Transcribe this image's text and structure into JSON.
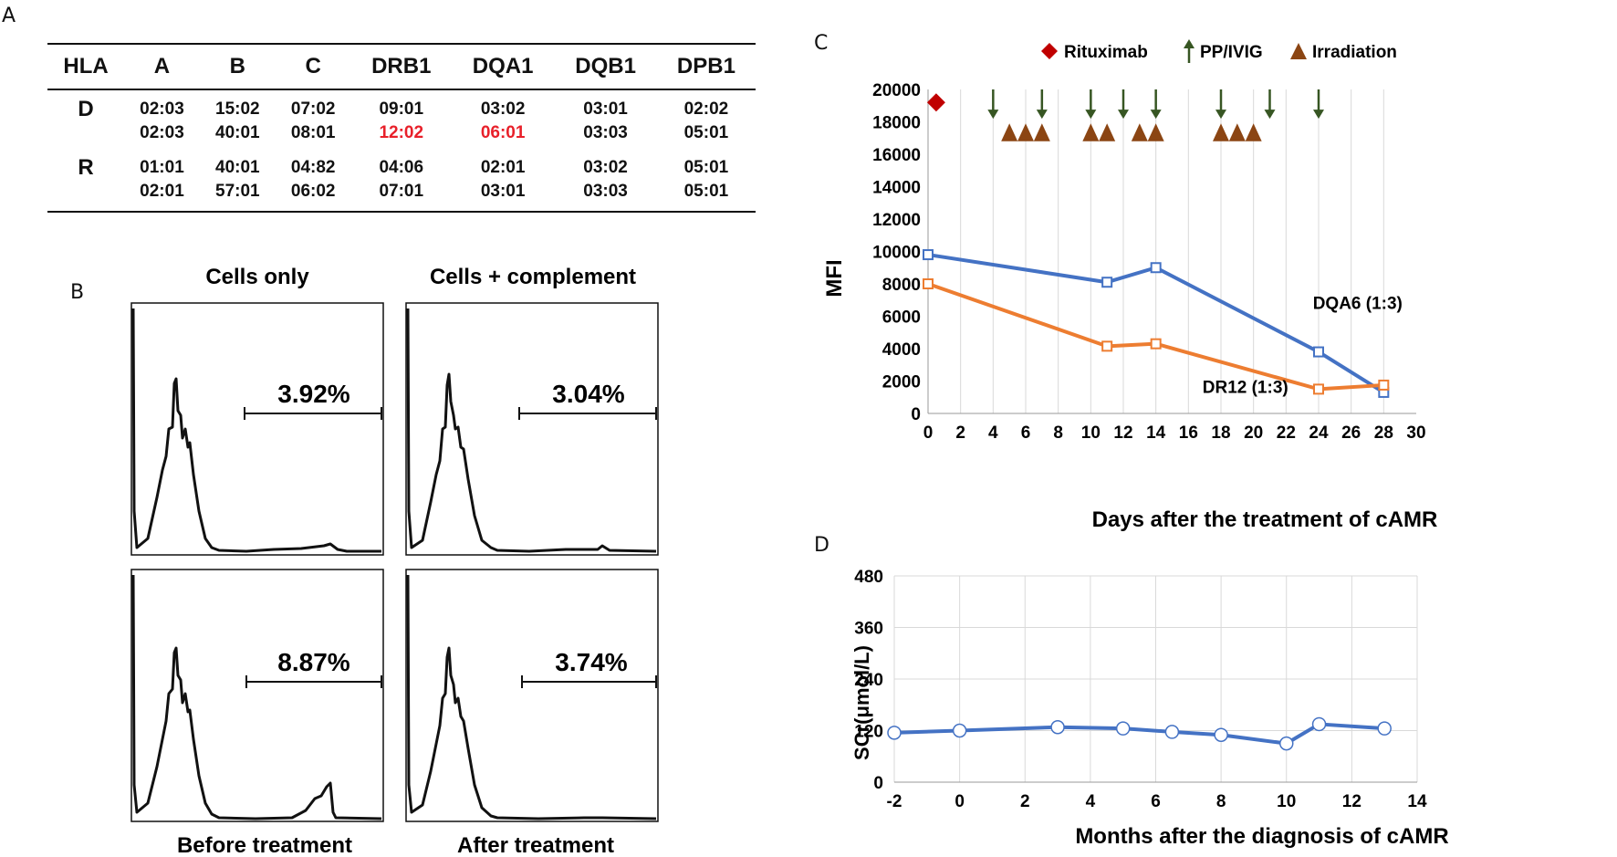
{
  "panels": {
    "A": "A",
    "B": "B",
    "C": "C",
    "D": "D"
  },
  "hla_table": {
    "headers": [
      "HLA",
      "A",
      "B",
      "C",
      "DRB1",
      "DQA1",
      "DQB1",
      "DPB1"
    ],
    "rows": [
      {
        "label": "D",
        "cells": [
          [
            "02:03",
            "02:03"
          ],
          [
            "15:02",
            "40:01"
          ],
          [
            "07:02",
            "08:01"
          ],
          [
            "09:01",
            "12:02"
          ],
          [
            "03:02",
            "06:01"
          ],
          [
            "03:01",
            "03:03"
          ],
          [
            "02:02",
            "05:01"
          ]
        ]
      },
      {
        "label": "R",
        "cells": [
          [
            "01:01",
            "02:01"
          ],
          [
            "40:01",
            "57:01"
          ],
          [
            "04:82",
            "06:02"
          ],
          [
            "04:06",
            "07:01"
          ],
          [
            "02:01",
            "03:01"
          ],
          [
            "03:02",
            "03:03"
          ],
          [
            "05:01",
            "05:01"
          ]
        ]
      }
    ],
    "highlight_color": "#e8202a"
  },
  "flow": {
    "col_titles": [
      "Cells only",
      "Cells + complement"
    ],
    "row_labels": [
      "Before treatment",
      "After treatment"
    ],
    "percentages": [
      [
        "3.92%",
        "3.04%"
      ],
      [
        "8.87%",
        "3.74%"
      ]
    ]
  },
  "chart_data": [
    {
      "type": "line",
      "panel": "C",
      "xlabel": "Days after the treatment of cAMR",
      "ylabel": "MFI",
      "xlim": [
        0,
        30
      ],
      "ylim": [
        0,
        20000
      ],
      "xticks": [
        0,
        2,
        4,
        6,
        8,
        10,
        12,
        14,
        16,
        18,
        20,
        22,
        24,
        26,
        28,
        30
      ],
      "yticks": [
        0,
        2000,
        4000,
        6000,
        8000,
        10000,
        12000,
        14000,
        16000,
        18000,
        20000
      ],
      "series": [
        {
          "name": "DQA6 (1:3)",
          "color": "#4472c4",
          "x": [
            0,
            11,
            14,
            24,
            28
          ],
          "y": [
            9800,
            8100,
            9000,
            3800,
            1300
          ]
        },
        {
          "name": "DR12 (1:3)",
          "color": "#ed7d31",
          "x": [
            0,
            11,
            14,
            24,
            28
          ],
          "y": [
            8000,
            4150,
            4300,
            1500,
            1750
          ]
        }
      ],
      "legend": [
        {
          "label": "Rituximab",
          "marker": "diamond",
          "color": "#c00000"
        },
        {
          "label": "PP/IVIG",
          "marker": "arrow",
          "color": "#375623"
        },
        {
          "label": "Irradiation",
          "marker": "triangle",
          "color": "#8b4513"
        }
      ],
      "rituximab_days": [
        0.5
      ],
      "ppivig_days": [
        4,
        7,
        10,
        12,
        14,
        18,
        21,
        24
      ],
      "irradiation_days": [
        5,
        6,
        7,
        10,
        11,
        13,
        14,
        18,
        19,
        20
      ]
    },
    {
      "type": "line",
      "panel": "D",
      "xlabel": "Months after the diagnosis of cAMR",
      "ylabel": "SCr(μmol/L)",
      "xlim": [
        -2,
        14
      ],
      "ylim": [
        0,
        480
      ],
      "xticks": [
        -2,
        0,
        2,
        4,
        6,
        8,
        10,
        12,
        14
      ],
      "yticks": [
        0,
        120,
        240,
        360,
        480
      ],
      "series": [
        {
          "name": "SCr",
          "color": "#4472c4",
          "x": [
            -2,
            0,
            3,
            5,
            6.5,
            8,
            10,
            11,
            13
          ],
          "y": [
            115,
            120,
            128,
            125,
            117,
            110,
            90,
            135,
            125
          ]
        }
      ]
    }
  ]
}
